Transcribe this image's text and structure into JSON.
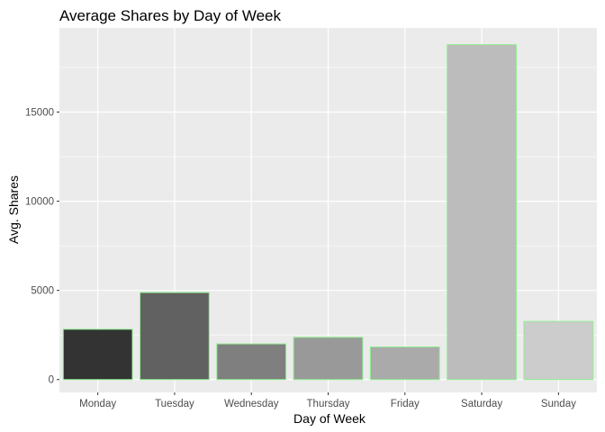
{
  "chart_data": {
    "type": "bar",
    "title": "Average Shares by Day of Week",
    "xlabel": "Day of Week",
    "ylabel": "Avg. Shares",
    "categories": [
      "Monday",
      "Tuesday",
      "Wednesday",
      "Thursday",
      "Friday",
      "Saturday",
      "Sunday"
    ],
    "values": [
      2820,
      4880,
      2000,
      2370,
      1830,
      18780,
      3260
    ],
    "ylim": [
      -720,
      19720
    ],
    "yticks": [
      0,
      5000,
      10000,
      15000
    ],
    "grid": true,
    "legend": "none",
    "bar_fills": [
      "#333333",
      "#616161",
      "#7f7f7f",
      "#999999",
      "#aaaaaa",
      "#bcbcbc",
      "#cccccc"
    ],
    "bar_outline": "#90ee90",
    "panel_background": "#ebebeb",
    "grid_color": "#ffffff"
  }
}
